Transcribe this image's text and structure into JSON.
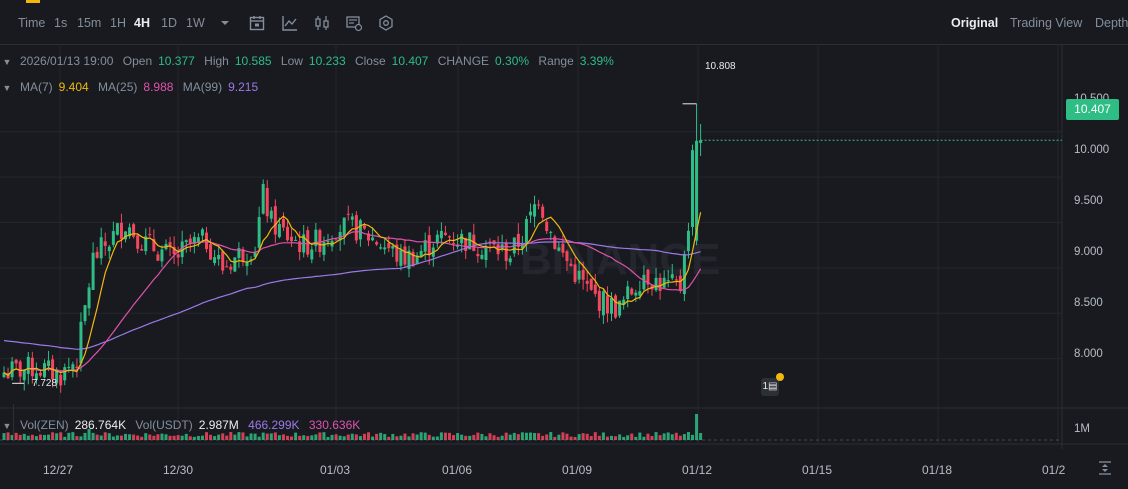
{
  "toolbar": {
    "time_label": "Time",
    "timeframes": [
      "1s",
      "15m",
      "1H",
      "4H",
      "1D",
      "1W"
    ],
    "active_timeframe": "4H",
    "views": [
      "Original",
      "Trading View",
      "Depth"
    ],
    "active_view": "Original",
    "icons": [
      "chevron-down-icon",
      "calendar-icon",
      "line-chart-icon",
      "candlestick-icon",
      "indicator-settings-icon",
      "gear-icon"
    ]
  },
  "ohlc": {
    "datetime": "2026/01/13 19:00",
    "open_label": "Open",
    "open": "10.377",
    "high_label": "High",
    "high": "10.585",
    "low_label": "Low",
    "low": "10.233",
    "close_label": "Close",
    "close": "10.407",
    "change_label": "CHANGE",
    "change": "0.30%",
    "range_label": "Range",
    "range": "3.39%"
  },
  "ma": {
    "ma7_label": "MA(7)",
    "ma7": "9.404",
    "ma25_label": "MA(25)",
    "ma25": "8.988",
    "ma99_label": "MA(99)",
    "ma99": "9.215"
  },
  "volume": {
    "zen_label": "Vol(ZEN)",
    "zen": "286.764K",
    "usdt_label": "Vol(USDT)",
    "usdt": "2.987M",
    "ma1": "466.299K",
    "ma2": "330.636K",
    "axis_label": "1M"
  },
  "current_price": "10.407",
  "high_marker": "10.808",
  "low_marker": "7.728",
  "watermark": "BINANCE",
  "colors": {
    "up": "#2ebd85",
    "down": "#f6465d",
    "ma7": "#f0b90b",
    "ma25": "#e052ad",
    "ma99": "#9c79e6",
    "background": "#181a20",
    "grid": "#23262d"
  },
  "chart_data": {
    "type": "candlestick",
    "y_ticks": [
      "8.000",
      "8.500",
      "9.000",
      "9.500",
      "10.000",
      "10.500"
    ],
    "ylim": [
      7.5,
      10.85
    ],
    "x_ticks": [
      "12/27",
      "12/30",
      "01/03",
      "01/06",
      "01/09",
      "01/12",
      "01/15",
      "01/18",
      "01/2"
    ],
    "anchors": [
      [
        0,
        7.85
      ],
      [
        8,
        7.9
      ],
      [
        14,
        7.82
      ],
      [
        18,
        8.0
      ],
      [
        22,
        9.1
      ],
      [
        26,
        9.3
      ],
      [
        30,
        9.5
      ],
      [
        34,
        9.3
      ],
      [
        38,
        9.2
      ],
      [
        42,
        9.1
      ],
      [
        46,
        9.25
      ],
      [
        50,
        9.3
      ],
      [
        54,
        9.0
      ],
      [
        58,
        9.15
      ],
      [
        62,
        9.25
      ],
      [
        64,
        9.8
      ],
      [
        66,
        9.5
      ],
      [
        70,
        9.35
      ],
      [
        74,
        9.25
      ],
      [
        78,
        9.3
      ],
      [
        82,
        9.45
      ],
      [
        86,
        9.45
      ],
      [
        90,
        9.35
      ],
      [
        94,
        9.25
      ],
      [
        98,
        9.1
      ],
      [
        102,
        9.15
      ],
      [
        106,
        9.3
      ],
      [
        110,
        9.35
      ],
      [
        114,
        9.3
      ],
      [
        118,
        9.25
      ],
      [
        122,
        9.2
      ],
      [
        125,
        9.15
      ],
      [
        128,
        9.35
      ],
      [
        130,
        9.55
      ],
      [
        132,
        9.8
      ],
      [
        134,
        9.5
      ],
      [
        137,
        9.2
      ],
      [
        141,
        8.95
      ],
      [
        145,
        8.7
      ],
      [
        149,
        8.6
      ],
      [
        152,
        8.55
      ],
      [
        155,
        8.75
      ],
      [
        158,
        8.95
      ],
      [
        161,
        8.85
      ],
      [
        164,
        8.8
      ],
      [
        167,
        8.8
      ],
      [
        168,
        9.25
      ],
      [
        169,
        9.35
      ],
      [
        170,
        10.4
      ],
      [
        172,
        10.407
      ]
    ]
  }
}
